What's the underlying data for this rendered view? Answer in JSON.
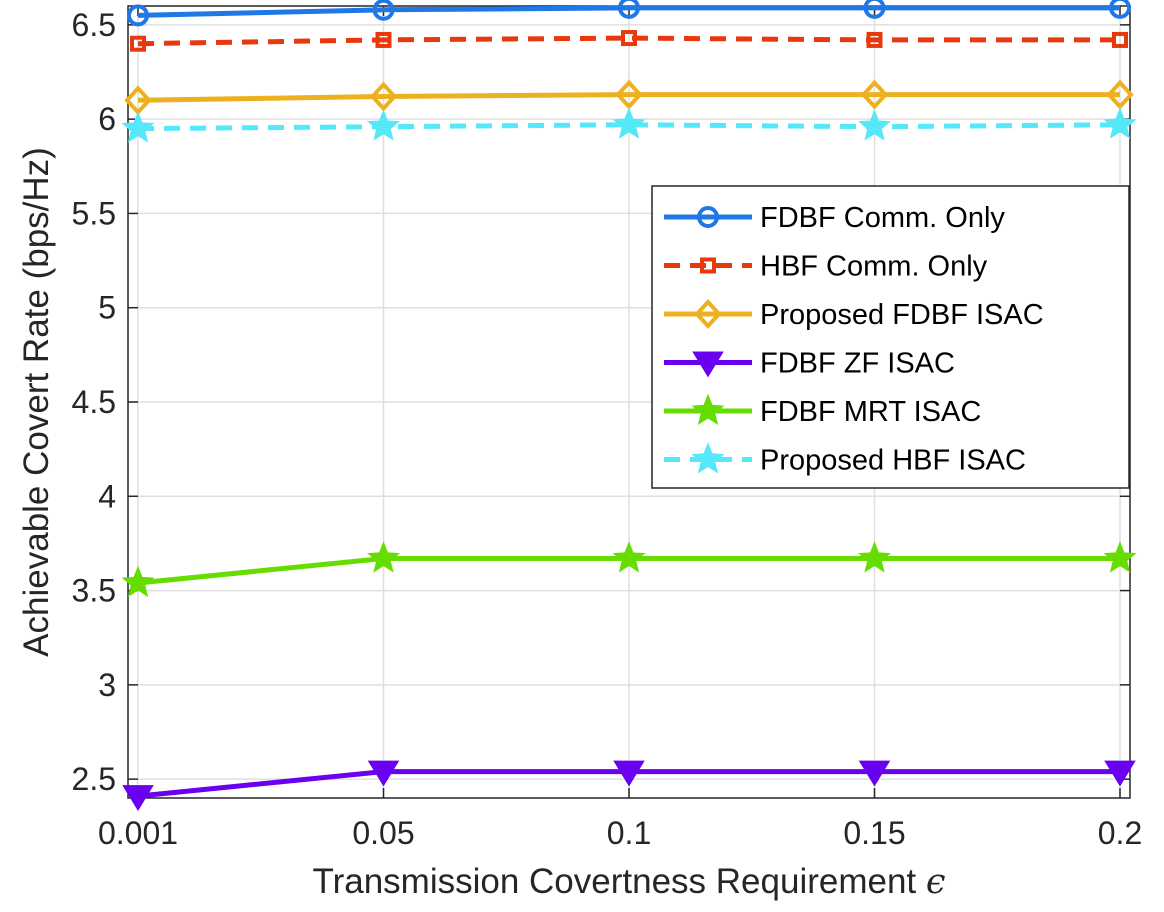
{
  "chart_data": {
    "type": "line",
    "title": "",
    "xlabel": "Transmission Covertness Requirement",
    "xlabel_symbol": "ϵ",
    "ylabel": "Achievable Covert Rate (bps/Hz)",
    "categories": [
      "0.001",
      "0.05",
      "0.1",
      "0.15",
      "0.2"
    ],
    "x": [
      0.001,
      0.05,
      0.1,
      0.15,
      0.2
    ],
    "ylim": [
      2.4,
      6.6
    ],
    "yticks": [
      2.5,
      3,
      3.5,
      4,
      4.5,
      5,
      5.5,
      6,
      6.5
    ],
    "ytick_labels": [
      "2.5",
      "3",
      "3.5",
      "4",
      "4.5",
      "5",
      "5.5",
      "6",
      "6.5"
    ],
    "grid": true,
    "legend_position": "top-right",
    "series": [
      {
        "name": "FDBF Comm. Only",
        "values": [
          6.55,
          6.58,
          6.59,
          6.59,
          6.59
        ],
        "color": "#1F77E8",
        "dash": "solid",
        "marker": "circle"
      },
      {
        "name": "HBF Comm. Only",
        "values": [
          6.4,
          6.42,
          6.43,
          6.42,
          6.42
        ],
        "color": "#E8380D",
        "dash": "dashed",
        "marker": "square"
      },
      {
        "name": "Proposed FDBF ISAC",
        "values": [
          6.1,
          6.12,
          6.13,
          6.13,
          6.13
        ],
        "color": "#EDB120",
        "dash": "solid",
        "marker": "diamond"
      },
      {
        "name": "FDBF ZF ISAC",
        "values": [
          2.41,
          2.54,
          2.54,
          2.54,
          2.54
        ],
        "color": "#6A00F0",
        "dash": "solid",
        "marker": "triangle-down"
      },
      {
        "name": "FDBF MRT ISAC",
        "values": [
          3.54,
          3.67,
          3.67,
          3.67,
          3.67
        ],
        "color": "#66DD00",
        "dash": "solid",
        "marker": "star"
      },
      {
        "name": "Proposed HBF ISAC",
        "values": [
          5.95,
          5.96,
          5.97,
          5.96,
          5.97
        ],
        "color": "#55E8F8",
        "dash": "dashed",
        "marker": "star"
      }
    ]
  }
}
